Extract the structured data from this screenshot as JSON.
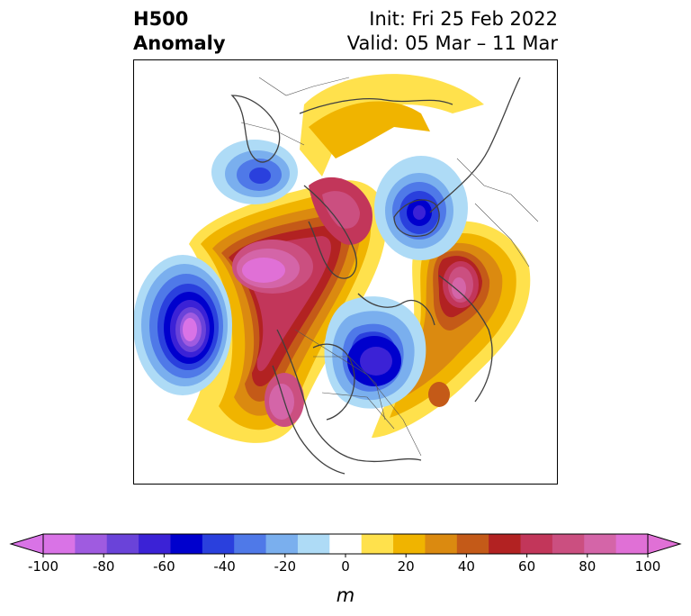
{
  "title": {
    "left_line1": "H500",
    "left_line2": "Anomaly",
    "init": "Init: Fri 25 Feb 2022",
    "valid": "Valid: 05 Mar – 11 Mar"
  },
  "colorbar": {
    "unit": "m",
    "ticks": [
      "-100",
      "-80",
      "-60",
      "-40",
      "-20",
      "0",
      "20",
      "40",
      "60",
      "80",
      "100"
    ],
    "colors": [
      "#d973e6",
      "#9f5be0",
      "#6a43d9",
      "#3b22d6",
      "#0000cd",
      "#2a40dd",
      "#4f79e8",
      "#7aafee",
      "#aedbf6",
      "#ffffff",
      "#ffe14c",
      "#f0b400",
      "#db8a10",
      "#c45a18",
      "#b22222",
      "#c2365a",
      "#cb4f80",
      "#d465a8",
      "#e070d6"
    ]
  },
  "map": {
    "type": "filled-contour",
    "variable": "500 hPa geopotential height anomaly",
    "projection": "north-polar stereographic",
    "centers": [
      {
        "kind": "positive",
        "region": "North Pacific",
        "value": 100
      },
      {
        "kind": "positive",
        "region": "Western North America",
        "value": 80
      },
      {
        "kind": "positive",
        "region": "Eastern Europe / Russia",
        "value": 80
      },
      {
        "kind": "positive",
        "region": "Western Atlantic",
        "value": 50
      },
      {
        "kind": "negative",
        "region": "Eastern Canada",
        "value": -70
      },
      {
        "kind": "negative",
        "region": "Greenland / Arctic",
        "value": -60
      },
      {
        "kind": "negative",
        "region": "East Siberia",
        "value": -50
      },
      {
        "kind": "negative",
        "region": "Mid-Atlantic ocean",
        "value": -100
      }
    ]
  }
}
